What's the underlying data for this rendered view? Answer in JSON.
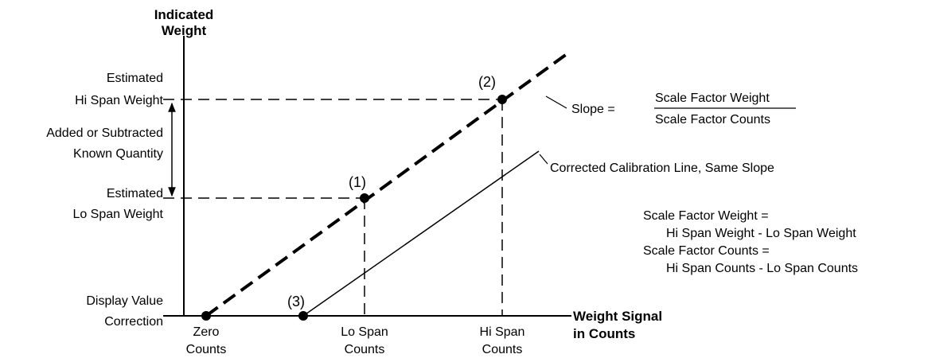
{
  "y_axis": {
    "label_lines": [
      "Indicated",
      "Weight"
    ]
  },
  "x_axis": {
    "label_lines": [
      "Weight Signal",
      "in Counts"
    ]
  },
  "y_labels": {
    "hi_span": [
      "Estimated",
      "Hi Span Weight"
    ],
    "known_quantity": [
      "Added or Subtracted",
      "Known Quantity"
    ],
    "lo_span": [
      "Estimated",
      "Lo Span Weight"
    ],
    "correction": [
      "Display Value",
      "Correction"
    ]
  },
  "x_labels": {
    "zero": [
      "Zero",
      "Counts"
    ],
    "lo_span": [
      "Lo Span",
      "Counts"
    ],
    "hi_span": [
      "Hi Span",
      "Counts"
    ]
  },
  "points": [
    "(1)",
    "(2)",
    "(3)"
  ],
  "slope": {
    "prefix": "Slope =",
    "numerator": "Scale Factor Weight",
    "denominator": "Scale Factor Counts"
  },
  "corrected_line": "Corrected Calibration Line, Same Slope",
  "formulas": [
    "Scale Factor Weight =",
    "Hi Span Weight - Lo Span Weight",
    "Scale Factor Counts =",
    "Hi Span Counts - Lo Span Counts"
  ]
}
